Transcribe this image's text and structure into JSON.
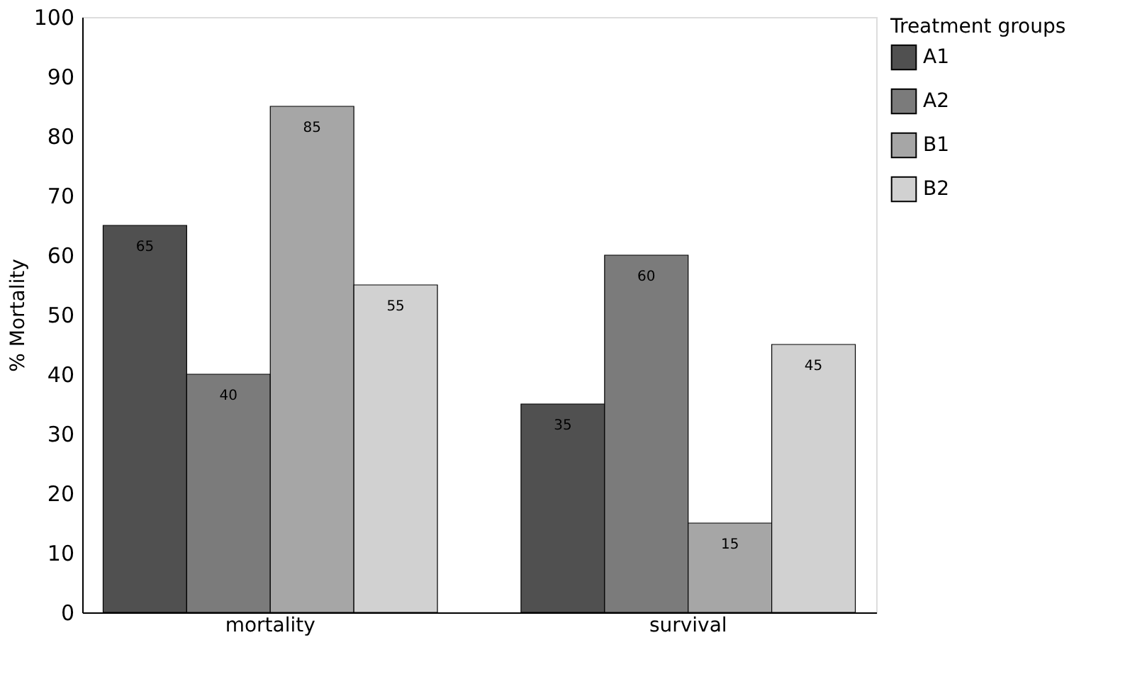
{
  "chart_data": {
    "type": "bar",
    "ylabel": "% Mortality",
    "legend_title": "Treatment groups",
    "legend": "right",
    "categories": [
      "mortality",
      "survival"
    ],
    "series": [
      {
        "name": "A1",
        "color": "#505050",
        "values": [
          65,
          35
        ]
      },
      {
        "name": "A2",
        "color": "#7b7b7b",
        "values": [
          40,
          60
        ]
      },
      {
        "name": "B1",
        "color": "#a6a6a6",
        "values": [
          85,
          15
        ]
      },
      {
        "name": "B2",
        "color": "#d1d1d1",
        "values": [
          55,
          45
        ]
      }
    ],
    "ylim": [
      0,
      100
    ],
    "yticks": [
      0,
      10,
      20,
      30,
      40,
      50,
      60,
      70,
      80,
      90,
      100
    ],
    "grid": false,
    "data_labels": true
  }
}
